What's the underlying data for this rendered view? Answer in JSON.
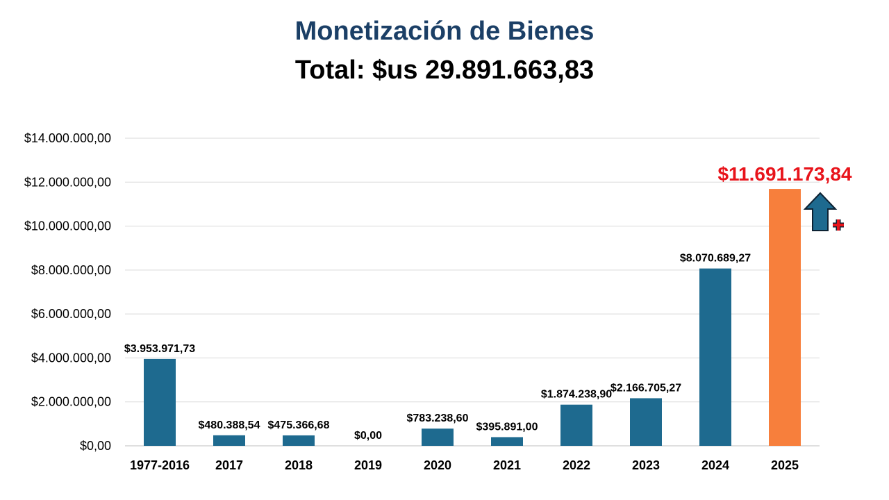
{
  "chart_data": {
    "type": "bar",
    "title": "Monetización de Bienes",
    "subtitle": "Total: $us 29.891.663,83",
    "categories": [
      "1977-2016",
      "2017",
      "2018",
      "2019",
      "2020",
      "2021",
      "2022",
      "2023",
      "2024",
      "2025"
    ],
    "values": [
      3953971.73,
      480388.54,
      475366.68,
      0,
      783238.6,
      395891.0,
      1874238.9,
      2166705.27,
      8070689.27,
      11691173.84
    ],
    "data_labels": [
      "$3.953.971,73",
      "$480.388,54",
      "$475.366,68",
      "$0,00",
      "$783.238,60",
      "$395.891,00",
      "$1.874.238,90",
      "$2.166.705,27",
      "$8.070.689,27",
      "$11.691.173,84"
    ],
    "ylim": [
      0,
      14000000
    ],
    "y_ticks": [
      0,
      2000000,
      4000000,
      6000000,
      8000000,
      10000000,
      12000000,
      14000000
    ],
    "y_tick_labels": [
      "$0,00",
      "$2.000.000,00",
      "$4.000.000,00",
      "$6.000.000,00",
      "$8.000.000,00",
      "$10.000.000,00",
      "$12.000.000,00",
      "$14.000.000,00"
    ],
    "grid": true,
    "bar_color": "#1e6a8f",
    "highlight_index": 9,
    "highlight_color": "#f77f3c",
    "highlight_label_color": "#e8141b",
    "annotation": {
      "icon": "up-arrow-plus-icon",
      "arrow_color": "#1e6a8f",
      "plus_color": "#e8141b"
    }
  }
}
